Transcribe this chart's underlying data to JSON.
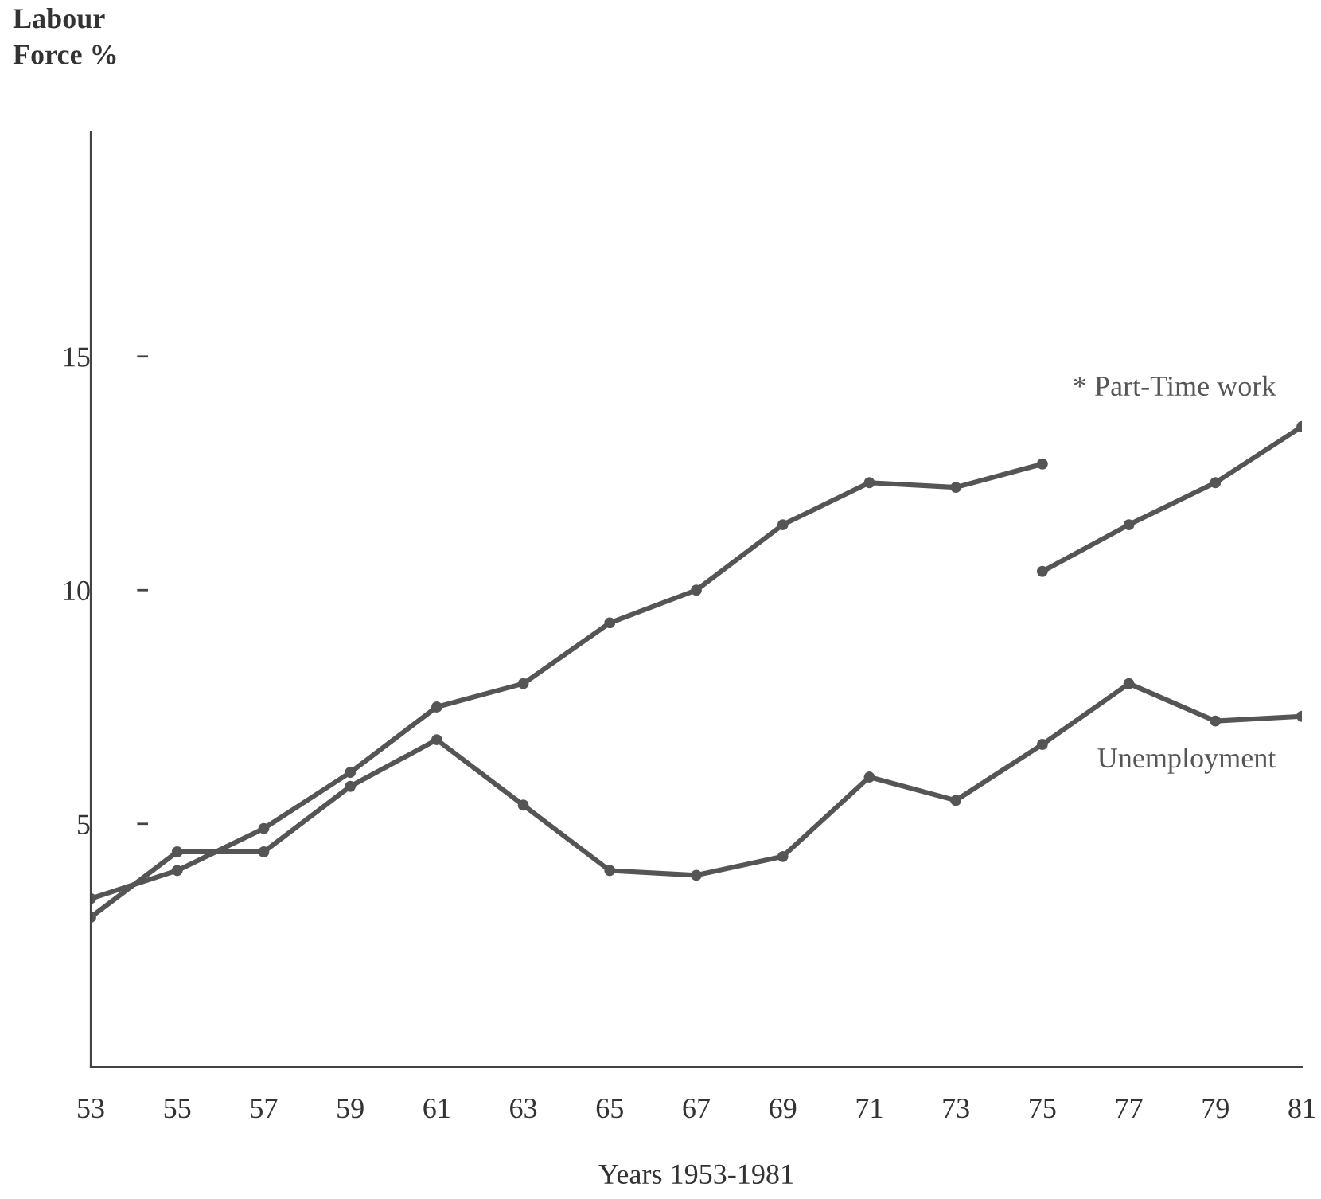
{
  "chart_data": {
    "type": "line",
    "ylabel": "Labour\nForce %",
    "xlabel": "Years 1953-1981",
    "xlim": [
      53,
      81
    ],
    "xticks": [
      53,
      55,
      57,
      59,
      61,
      63,
      65,
      67,
      69,
      71,
      73,
      75,
      77,
      79,
      81
    ],
    "ylim": [
      -0.2,
      19.8
    ],
    "yticks": [
      5,
      10,
      15
    ],
    "grid": false,
    "legend": false,
    "marker": "circle",
    "line_style": "solid",
    "series": [
      {
        "name": "* Part-Time work",
        "color": "#555555",
        "x": [
          53,
          55,
          57,
          59,
          61,
          63,
          65,
          67,
          69,
          71,
          73,
          75
        ],
        "values": [
          3.4,
          4.0,
          4.9,
          6.1,
          7.5,
          8.0,
          9.3,
          10.0,
          11.4,
          12.3,
          12.2,
          12.7
        ]
      },
      {
        "color": "#555555",
        "x": [
          75,
          77,
          79,
          81
        ],
        "values": [
          10.4,
          11.4,
          12.3,
          13.5
        ]
      },
      {
        "name": "Unemployment",
        "color": "#555555",
        "x": [
          53,
          55,
          57,
          59,
          61,
          63,
          65,
          67,
          69,
          71,
          73,
          75,
          77,
          79,
          81
        ],
        "values": [
          3.0,
          4.4,
          4.4,
          5.8,
          6.8,
          5.4,
          4.0,
          3.9,
          4.3,
          6.0,
          5.5,
          6.7,
          8.0,
          7.2,
          7.3
        ]
      }
    ]
  }
}
